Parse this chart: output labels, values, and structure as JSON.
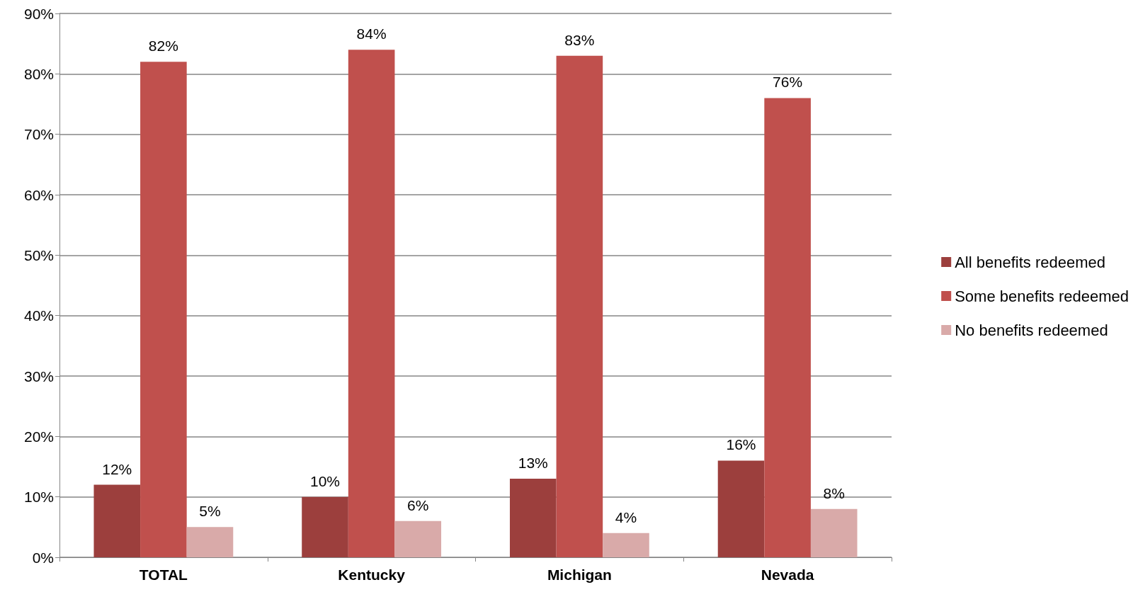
{
  "chart_data": {
    "type": "bar",
    "categories": [
      "TOTAL",
      "Kentucky",
      "Michigan",
      "Nevada"
    ],
    "series": [
      {
        "name": "All benefits redeemed",
        "color": "#9c3f3d",
        "values": [
          12,
          10,
          13,
          16
        ],
        "value_labels": [
          "12%",
          "10%",
          "13%",
          "16%"
        ]
      },
      {
        "name": "Some benefits redeemed",
        "color": "#c0504d",
        "values": [
          82,
          84,
          83,
          76
        ],
        "value_labels": [
          "82%",
          "84%",
          "83%",
          "76%"
        ]
      },
      {
        "name": "No benefits redeemed",
        "color": "#d9aaa9",
        "values": [
          5,
          6,
          4,
          8
        ],
        "value_labels": [
          "5%",
          "6%",
          "4%",
          "8%"
        ]
      }
    ],
    "ylim": [
      0,
      90
    ],
    "yticks": [
      {
        "value": 0,
        "label": "0%"
      },
      {
        "value": 10,
        "label": "10%"
      },
      {
        "value": 20,
        "label": "20%"
      },
      {
        "value": 30,
        "label": "30%"
      },
      {
        "value": 40,
        "label": "40%"
      },
      {
        "value": 50,
        "label": "50%"
      },
      {
        "value": 60,
        "label": "60%"
      },
      {
        "value": 70,
        "label": "70%"
      },
      {
        "value": 80,
        "label": "80%"
      },
      {
        "value": 90,
        "label": "90%"
      }
    ],
    "grid": "y",
    "legend": "right"
  }
}
